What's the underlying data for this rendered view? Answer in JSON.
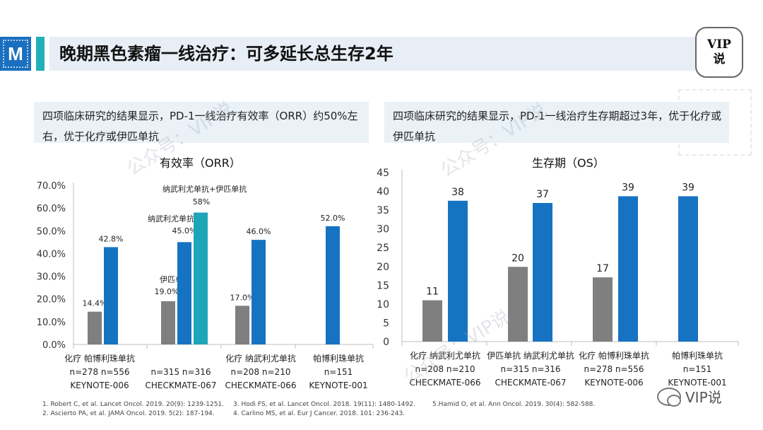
{
  "header": {
    "logo_text": "M",
    "title": "晚期黑色素瘤一线治疗：可多延长总生存2年",
    "vip_line1": "VIP",
    "vip_line2": "说"
  },
  "left_callout": "四项临床研究的结果显示，PD-1一线治疗有效率（ORR）约50%左右，优于化疗或伊匹单抗",
  "right_callout": "四项临床研究的结果显示，PD-1一线治疗生存期超过3年，优于化疗或伊匹单抗",
  "watermark": "公众号：VIP说",
  "wechat_label": "VIP说",
  "references": {
    "col1": [
      "1. Robert C, et al. Lancet Oncol. 2019. 20(9): 1239-1251.",
      "2. Ascierto PA, et al. JAMA Oncol. 2019. 5(2): 187-194."
    ],
    "col2": [
      "3. Hodi FS, et al. Lancet Oncol. 2018. 19(11): 1480-1492.",
      "4. Carlino MS, et al. Eur J Cancer. 2018. 101: 236-243."
    ],
    "col3": [
      "5.Hamid O, et al. Ann Oncol. 2019. 30(4): 582-588."
    ]
  },
  "colors": {
    "gray": "#7f7f7f",
    "blue": "#1673c2",
    "teal": "#1ea5b8",
    "axis": "#bfbfbf"
  },
  "chart_data": [
    {
      "type": "bar",
      "title": "有效率（ORR）",
      "ylim": [
        0,
        70
      ],
      "yticks": [
        "0.0%",
        "10.0%",
        "20.0%",
        "30.0%",
        "40.0%",
        "50.0%",
        "60.0%",
        "70.0%"
      ],
      "grid": false,
      "groups": [
        {
          "label": [
            "化疗  帕博利珠单抗",
            "n=278 n=556",
            "KEYNOTE-006"
          ],
          "bars": [
            {
              "value": 14.4,
              "label": "14.4%",
              "color": "gray"
            },
            {
              "value": 42.8,
              "label": "42.8%",
              "color": "blue"
            }
          ]
        },
        {
          "label": [
            "",
            "n=315 n=316",
            "CHECKMATE-067"
          ],
          "bars": [
            {
              "value": 19.0,
              "label": "19.0%",
              "color": "gray",
              "name": "伊匹单抗"
            },
            {
              "value": 45.0,
              "label": "45.0%",
              "color": "blue",
              "name": "纳武利尤单抗"
            },
            {
              "value": 58.0,
              "label": "58%",
              "color": "teal",
              "name": "纳武利尤单抗+伊匹单抗"
            }
          ]
        },
        {
          "label": [
            "化疗  纳武利尤单抗",
            "n=208 n=210",
            "CHECKMATE-066"
          ],
          "bars": [
            {
              "value": 17.0,
              "label": "17.0%",
              "color": "gray"
            },
            {
              "value": 46.0,
              "label": "46.0%",
              "color": "blue"
            }
          ]
        },
        {
          "label": [
            "帕博利珠单抗",
            "n=151",
            "KEYNOTE-001"
          ],
          "bars": [
            {
              "value": 52.0,
              "label": "52.0%",
              "color": "blue"
            }
          ]
        }
      ]
    },
    {
      "type": "bar",
      "title": "生存期（OS）",
      "ylim": [
        0,
        45
      ],
      "yticks": [
        "0",
        "5",
        "10",
        "15",
        "20",
        "25",
        "30",
        "35",
        "40",
        "45"
      ],
      "grid": false,
      "groups": [
        {
          "label": [
            "化疗  纳武利尤单抗",
            "n=208 n=210",
            "CHECKMATE-066"
          ],
          "bars": [
            {
              "value": 11,
              "label": "11",
              "color": "gray"
            },
            {
              "value": 37.5,
              "label": "38",
              "color": "blue"
            }
          ]
        },
        {
          "label": [
            "伊匹单抗  纳武利尤单抗",
            "n=315 n=316",
            "CHECKMATE-067"
          ],
          "bars": [
            {
              "value": 19.9,
              "label": "20",
              "color": "gray"
            },
            {
              "value": 36.9,
              "label": "37",
              "color": "blue"
            }
          ]
        },
        {
          "label": [
            "化疗  帕博利珠单抗",
            "n=278 n=556",
            "KEYNOTE-006"
          ],
          "bars": [
            {
              "value": 17.1,
              "label": "17",
              "color": "gray"
            },
            {
              "value": 38.7,
              "label": "39",
              "color": "blue"
            }
          ]
        },
        {
          "label": [
            "帕博利珠单抗",
            "n=151",
            "KEYNOTE-001"
          ],
          "bars": [
            {
              "value": 38.7,
              "label": "39",
              "color": "blue"
            }
          ]
        }
      ]
    }
  ]
}
